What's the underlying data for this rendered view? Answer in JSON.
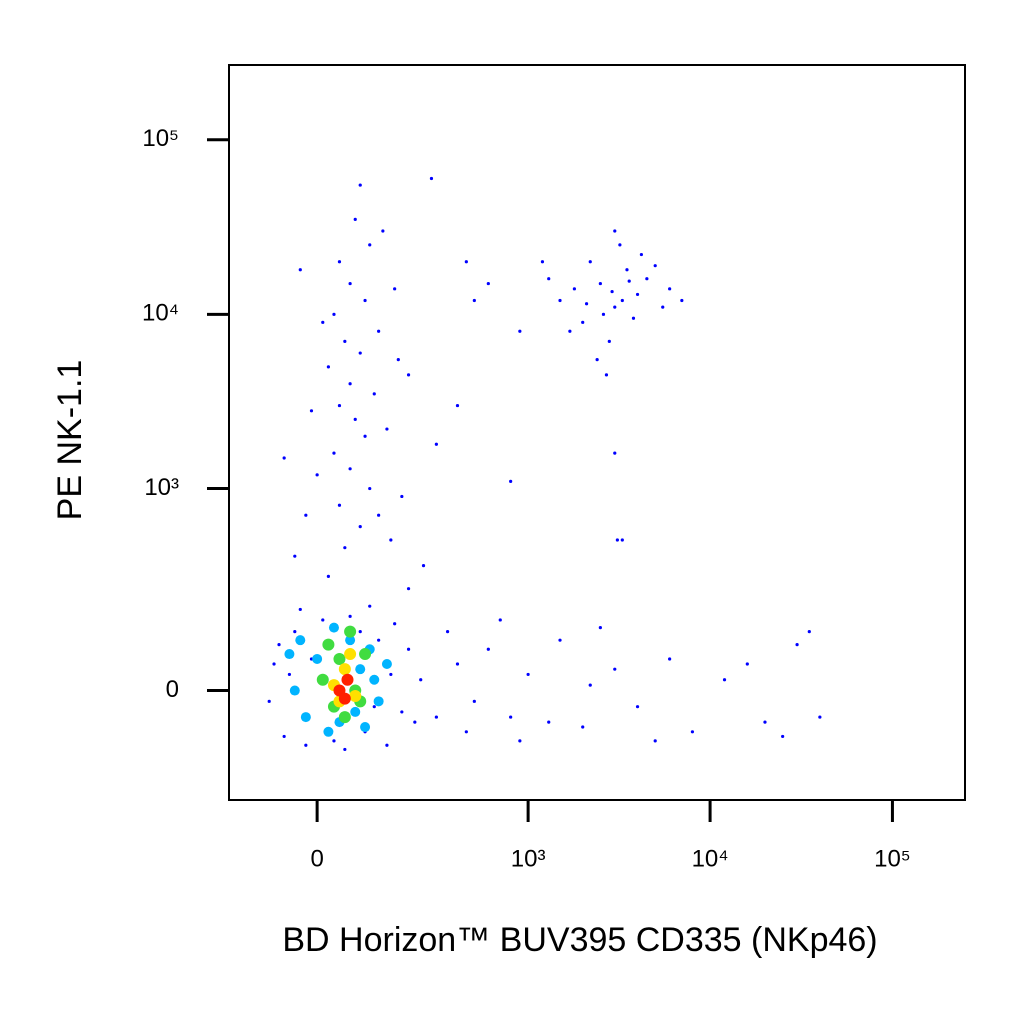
{
  "chart_data": {
    "type": "scatter",
    "scale": "biexponential",
    "x_label": "BD Horizon™ BUV395 CD335 (NKp46)",
    "y_label": "PE NK-1.1",
    "xlim": [
      -190,
      250000
    ],
    "ylim": [
      -280,
      268000
    ],
    "xticks": [
      0,
      {
        "value": 1000,
        "label": "10³"
      },
      {
        "value": 10000,
        "label": "10⁴"
      },
      {
        "value": 100000,
        "label": "10⁵"
      }
    ],
    "yticks": [
      0,
      {
        "value": 1000,
        "label": "10³"
      },
      {
        "value": 10000,
        "label": "10⁴"
      },
      {
        "value": 100000,
        "label": "10⁵"
      }
    ],
    "series": [
      {
        "color": "#0000ff",
        "points": [
          [
            -80,
            50
          ],
          [
            -60,
            -90
          ],
          [
            -40,
            120
          ],
          [
            -20,
            -110
          ],
          [
            10,
            150
          ],
          [
            30,
            -100
          ],
          [
            60,
            160
          ],
          [
            90,
            -80
          ],
          [
            120,
            100
          ],
          [
            150,
            30
          ],
          [
            180,
            -40
          ],
          [
            200,
            80
          ],
          [
            -90,
            -20
          ],
          [
            -70,
            90
          ],
          [
            220,
            -60
          ],
          [
            160,
            140
          ],
          [
            -30,
            180
          ],
          [
            100,
            190
          ],
          [
            240,
            20
          ],
          [
            140,
            -110
          ],
          [
            50,
            -120
          ],
          [
            -50,
            30
          ],
          [
            -10,
            60
          ],
          [
            80,
            120
          ],
          [
            110,
            -30
          ],
          [
            20,
            300
          ],
          [
            50,
            450
          ],
          [
            80,
            600
          ],
          [
            40,
            800
          ],
          [
            100,
            1000
          ],
          [
            60,
            1300
          ],
          [
            30,
            1600
          ],
          [
            90,
            2000
          ],
          [
            70,
            2500
          ],
          [
            40,
            3000
          ],
          [
            110,
            3500
          ],
          [
            60,
            4000
          ],
          [
            20,
            5000
          ],
          [
            80,
            6000
          ],
          [
            50,
            7000
          ],
          [
            120,
            8000
          ],
          [
            30,
            10000
          ],
          [
            90,
            12000
          ],
          [
            60,
            15000
          ],
          [
            40,
            20000
          ],
          [
            100,
            25000
          ],
          [
            70,
            35000
          ],
          [
            150,
            500
          ],
          [
            -20,
            700
          ],
          [
            180,
            900
          ],
          [
            0,
            1200
          ],
          [
            140,
            2200
          ],
          [
            -10,
            2800
          ],
          [
            200,
            4500
          ],
          [
            10,
            9000
          ],
          [
            160,
            14000
          ],
          [
            -30,
            18000
          ],
          [
            130,
            30000
          ],
          [
            80,
            55000
          ],
          [
            200,
            250
          ],
          [
            -40,
            400
          ],
          [
            250,
            350
          ],
          [
            120,
            700
          ],
          [
            300,
            1800
          ],
          [
            -60,
            1500
          ],
          [
            170,
            5500
          ],
          [
            280,
            60000
          ],
          [
            1500,
            12000
          ],
          [
            2000,
            9000
          ],
          [
            2500,
            15000
          ],
          [
            3000,
            11000
          ],
          [
            3500,
            18000
          ],
          [
            4000,
            13000
          ],
          [
            2200,
            20000
          ],
          [
            2800,
            7000
          ],
          [
            3200,
            25000
          ],
          [
            1800,
            14000
          ],
          [
            4500,
            16000
          ],
          [
            5000,
            19000
          ],
          [
            2600,
            10000
          ],
          [
            3800,
            9500
          ],
          [
            2400,
            5500
          ],
          [
            3000,
            30000
          ],
          [
            6000,
            14000
          ],
          [
            1300,
            16000
          ],
          [
            1700,
            8000
          ],
          [
            4200,
            22000
          ],
          [
            2900,
            13500
          ],
          [
            3300,
            12000
          ],
          [
            2100,
            11500
          ],
          [
            3600,
            15500
          ],
          [
            5500,
            11000
          ],
          [
            1200,
            20000
          ],
          [
            7000,
            12000
          ],
          [
            2700,
            4500
          ],
          [
            500,
            12000
          ],
          [
            600,
            15000
          ],
          [
            900,
            8000
          ],
          [
            450,
            20000
          ],
          [
            800,
            1100
          ],
          [
            3000,
            1600
          ],
          [
            3100,
            500
          ],
          [
            3300,
            500
          ],
          [
            400,
            3000
          ],
          [
            400,
            50
          ],
          [
            500,
            -20
          ],
          [
            600,
            80
          ],
          [
            800,
            -50
          ],
          [
            1000,
            30
          ],
          [
            1500,
            100
          ],
          [
            2000,
            -70
          ],
          [
            3000,
            40
          ],
          [
            4000,
            -30
          ],
          [
            6000,
            60
          ],
          [
            8000,
            -80
          ],
          [
            12000,
            20
          ],
          [
            20000,
            -60
          ],
          [
            30000,
            90
          ],
          [
            40000,
            -50
          ],
          [
            700,
            150
          ],
          [
            2500,
            130
          ],
          [
            5000,
            -100
          ],
          [
            900,
            -100
          ],
          [
            1300,
            -60
          ],
          [
            2200,
            10
          ],
          [
            16000,
            50
          ],
          [
            25000,
            -90
          ],
          [
            35000,
            120
          ],
          [
            450,
            -80
          ],
          [
            350,
            120
          ],
          [
            300,
            -50
          ]
        ]
      },
      {
        "color": "#00b4ff",
        "points": [
          [
            -40,
            0
          ],
          [
            0,
            60
          ],
          [
            40,
            -60
          ],
          [
            80,
            40
          ],
          [
            120,
            -20
          ],
          [
            -20,
            -50
          ],
          [
            60,
            100
          ],
          [
            100,
            80
          ],
          [
            20,
            -80
          ],
          [
            140,
            50
          ],
          [
            -50,
            70
          ],
          [
            30,
            130
          ],
          [
            90,
            -70
          ],
          [
            -30,
            100
          ],
          [
            70,
            -40
          ],
          [
            110,
            20
          ]
        ]
      },
      {
        "color": "#40dc40",
        "points": [
          [
            10,
            20
          ],
          [
            40,
            60
          ],
          [
            70,
            0
          ],
          [
            90,
            70
          ],
          [
            30,
            -30
          ],
          [
            50,
            -50
          ],
          [
            80,
            -20
          ],
          [
            20,
            90
          ],
          [
            60,
            120
          ]
        ]
      },
      {
        "color": "#ffe000",
        "points": [
          [
            30,
            10
          ],
          [
            50,
            40
          ],
          [
            70,
            -10
          ],
          [
            60,
            70
          ],
          [
            40,
            -20
          ]
        ]
      },
      {
        "color": "#ff2000",
        "points": [
          [
            40,
            0
          ],
          [
            55,
            20
          ],
          [
            50,
            -15
          ]
        ]
      }
    ]
  }
}
